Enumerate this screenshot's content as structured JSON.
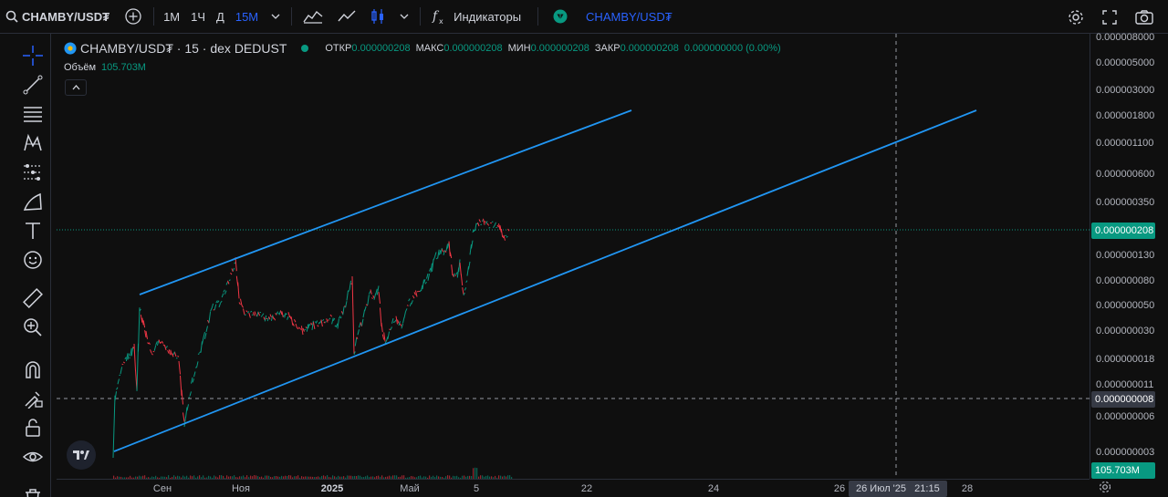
{
  "toolbar": {
    "symbol": "CHAMBY/USD₮",
    "intervals": [
      "1M",
      "1Ч",
      "Д",
      "15М"
    ],
    "active_interval": "15М",
    "indicators_label": "Индикаторы",
    "compare_symbol": "CHAMBY/USD₮",
    "icons": [
      "search-icon",
      "add-symbol-icon",
      "chevron-down-icon",
      "area-chart-icon",
      "line-chart-icon",
      "candles-icon",
      "indicators-icon",
      "settings-icon",
      "fullscreen-icon",
      "camera-icon"
    ]
  },
  "legend": {
    "title": "CHAMBY/USD₮ · 15 · dex DEDUST",
    "open_label": "ОТКР",
    "open": "0.000000208",
    "high_label": "МАКС",
    "high": "0.000000208",
    "low_label": "МИН",
    "low": "0.000000208",
    "close_label": "ЗАКР",
    "close": "0.000000208",
    "change": "0.000000000 (0.00%)",
    "volume_label": "Объём",
    "volume": "105.703M"
  },
  "price_scale": {
    "ticks": [
      "0.000008000",
      "0.000005000",
      "0.000003000",
      "0.000001800",
      "0.000001100",
      "0.000000600",
      "0.000000350",
      "0.000000130",
      "0.000000080",
      "0.000000050",
      "0.000000030",
      "0.000000018",
      "0.000000011",
      "0.000000006",
      "0.000000003"
    ],
    "last_price_label": "0.000000208",
    "crosshair_price_label": "0.000000008",
    "volume_label": "105.703M"
  },
  "time_scale": {
    "ticks": [
      "Сен",
      "Ноя",
      "2025",
      "Май",
      "5",
      "22",
      "24",
      "26",
      "28"
    ],
    "crosshair_label": "26 Июл '25   21:15"
  },
  "colors": {
    "up": "#089981",
    "down": "#f23645",
    "channel": "#2196f3",
    "accent": "#2962ff",
    "background": "#0f0f0f"
  },
  "left_tools": [
    "crosshair-icon",
    "trend-line-icon",
    "fib-icon",
    "pattern-icon",
    "prediction-icon",
    "brush-icon",
    "text-icon",
    "emoji-icon",
    "ruler-icon",
    "zoom-in-icon",
    "magnet-icon",
    "lock-drawing-icon",
    "lock-icon",
    "eye-icon",
    "trash-icon"
  ]
}
